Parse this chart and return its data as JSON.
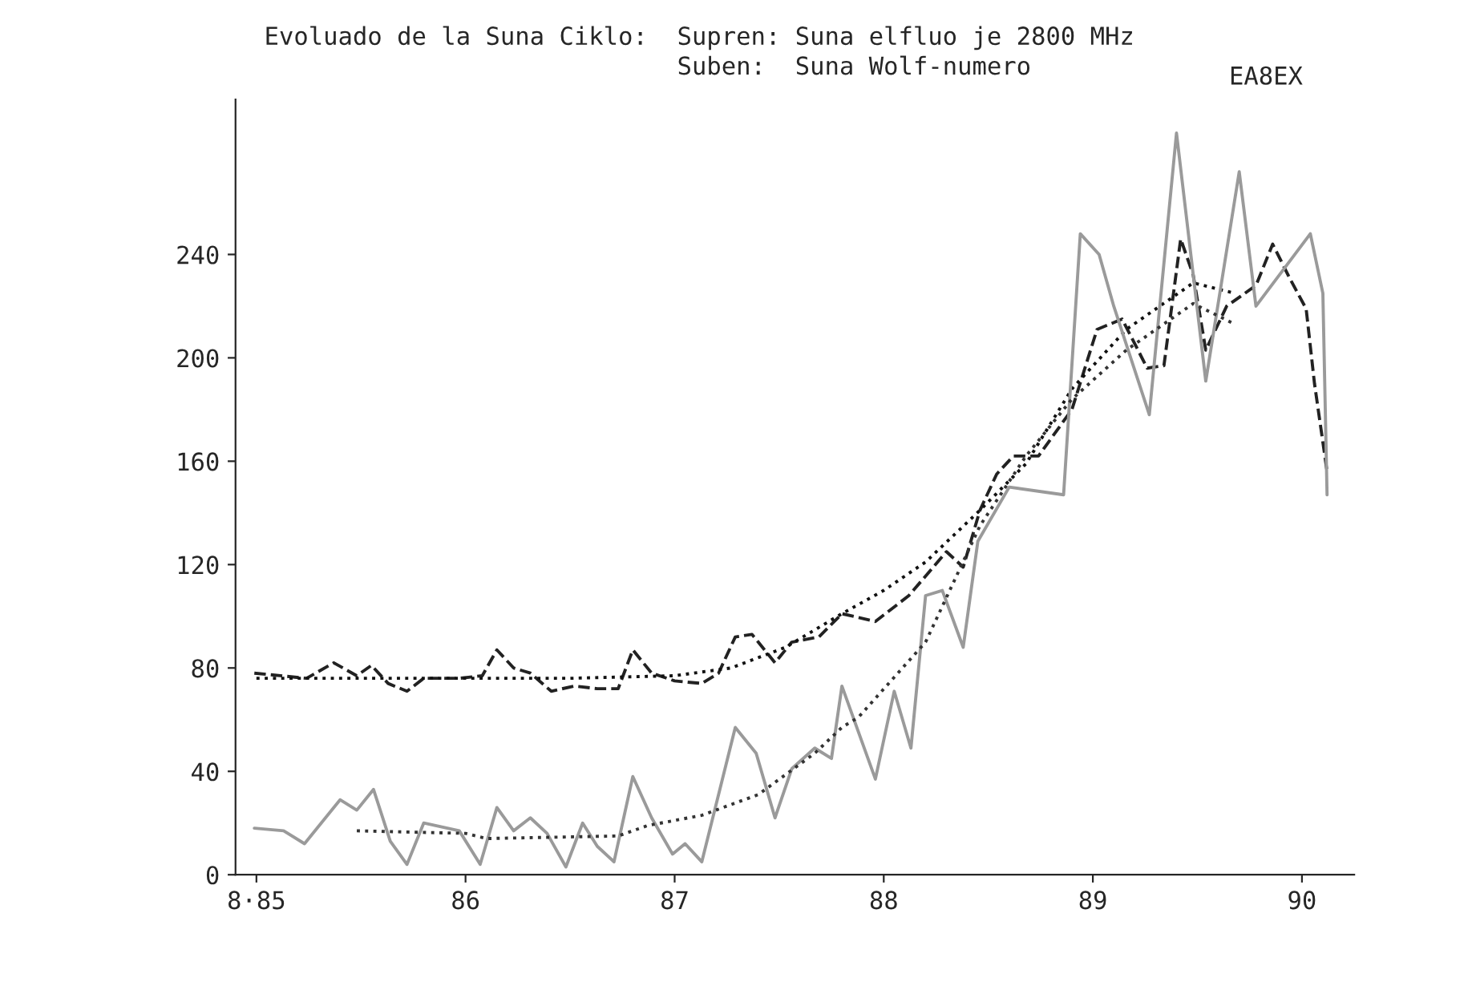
{
  "chart_data": {
    "type": "line",
    "title": "Evoluado de la Suna Ciklo:",
    "annotations": [
      "Supren: Suna elfluo je 2800 MHz",
      "Suben:  Suna Wolf-numero",
      "EA8EX"
    ],
    "xlim": [
      84.9,
      90.25
    ],
    "xticks": [
      {
        "value": 85,
        "label": "8·85"
      },
      86,
      87,
      88,
      89,
      90
    ],
    "ylim": [
      0,
      300
    ],
    "yticks": [
      0,
      40,
      80,
      120,
      160,
      200,
      240
    ],
    "grid": false,
    "legend": false,
    "marker": "none",
    "series": [
      {
        "color": "#222222",
        "line_style": "dashed",
        "x": [
          84.99,
          85.24,
          85.37,
          85.48,
          85.55,
          85.63,
          85.72,
          85.8,
          85.97,
          86.08,
          86.15,
          86.23,
          86.31,
          86.41,
          86.52,
          86.63,
          86.73,
          86.8,
          86.89,
          87.0,
          87.13,
          87.21,
          87.29,
          87.37,
          87.48,
          87.56,
          87.69,
          87.8,
          87.96,
          88.12,
          88.3,
          88.38,
          88.46,
          88.54,
          88.62,
          88.74,
          88.9,
          89.02,
          89.14,
          89.26,
          89.34,
          89.42,
          89.48,
          89.54,
          89.64,
          89.78,
          89.86,
          89.94,
          90.02,
          90.06,
          90.12
        ],
        "values": [
          78,
          76,
          82,
          77,
          81,
          74,
          71,
          76,
          76,
          77,
          87,
          80,
          78,
          71,
          73,
          72,
          72,
          87,
          78,
          75,
          74,
          78,
          92,
          93,
          82,
          90,
          92,
          101,
          98,
          108,
          125,
          119,
          141,
          155,
          162,
          162,
          180,
          211,
          215,
          196,
          197,
          246,
          232,
          203,
          220,
          228,
          244,
          231,
          219,
          190,
          156
        ]
      },
      {
        "color": "#111111",
        "line_style": "dotted",
        "x": [
          85.0,
          85.5,
          86.5,
          87.0,
          87.27,
          87.53,
          87.8,
          88.0,
          88.2,
          88.46,
          88.68,
          88.9,
          89.16,
          89.48,
          89.68
        ],
        "values": [
          76,
          76,
          76,
          77,
          80,
          88,
          101,
          110,
          121,
          141,
          159,
          188,
          211,
          229,
          225
        ]
      },
      {
        "color": "#9a9a9a",
        "line_style": "solid",
        "x": [
          84.99,
          85.13,
          85.23,
          85.4,
          85.48,
          85.56,
          85.64,
          85.72,
          85.8,
          85.97,
          86.07,
          86.15,
          86.23,
          86.31,
          86.39,
          86.48,
          86.56,
          86.63,
          86.71,
          86.8,
          86.89,
          86.99,
          87.05,
          87.13,
          87.29,
          87.39,
          87.48,
          87.56,
          87.67,
          87.75,
          87.8,
          87.96,
          88.05,
          88.13,
          88.2,
          88.28,
          88.38,
          88.45,
          88.6,
          88.86,
          88.94,
          89.03,
          89.1,
          89.27,
          89.4,
          89.54,
          89.7,
          89.78,
          90.04,
          90.1,
          90.12
        ],
        "values": [
          18,
          17,
          12,
          29,
          25,
          33,
          13,
          4,
          20,
          17,
          4,
          26,
          17,
          22,
          16,
          3,
          20,
          11,
          5,
          38,
          22,
          8,
          12,
          5,
          57,
          47,
          22,
          41,
          49,
          45,
          73,
          37,
          71,
          49,
          108,
          110,
          88,
          129,
          150,
          147,
          248,
          240,
          220,
          178,
          287,
          191,
          272,
          220,
          248,
          225,
          147
        ]
      },
      {
        "color": "#333333",
        "line_style": "dotted",
        "x": [
          85.48,
          86.0,
          86.1,
          86.73,
          86.87,
          87.13,
          87.4,
          87.67,
          87.8,
          87.88,
          88.2,
          88.46,
          88.68,
          88.9,
          89.16,
          89.48,
          89.68
        ],
        "values": [
          17,
          16,
          14,
          15,
          19,
          23,
          31,
          47,
          57,
          61,
          90,
          135,
          162,
          184,
          203,
          221,
          213
        ]
      }
    ]
  }
}
